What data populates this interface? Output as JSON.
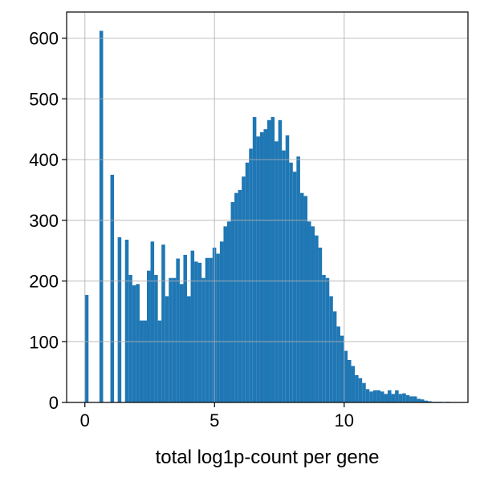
{
  "chart_data": {
    "type": "histogram",
    "xlabel": "total log1p-count per gene",
    "color": "#1f77b4",
    "grid": true,
    "bins": [
      0,
      0.1407,
      0.2814,
      0.4221,
      0.5628,
      0.7035,
      0.8442,
      0.9849,
      1.1256,
      1.2663,
      1.407,
      1.5477,
      1.6884,
      1.8291,
      1.9698,
      2.1105,
      2.2512,
      2.3919,
      2.5326,
      2.6733,
      2.814,
      2.9547,
      3.0954,
      3.2361,
      3.3768,
      3.5175,
      3.6582,
      3.7989,
      3.9396,
      4.0803,
      4.221,
      4.3617,
      4.5024,
      4.6431,
      4.7838,
      4.9245,
      5.0652,
      5.2059,
      5.3466,
      5.4873,
      5.628,
      5.7687,
      5.9094,
      6.0501,
      6.1908,
      6.3315,
      6.4722,
      6.6129,
      6.7536,
      6.8943,
      7.035,
      7.1757,
      7.3164,
      7.4571,
      7.5978,
      7.7385,
      7.8792,
      8.0199,
      8.1606,
      8.3013,
      8.442,
      8.5827,
      8.7234,
      8.8641,
      9.0048,
      9.1455,
      9.2862,
      9.4269,
      9.5676,
      9.7083,
      9.849,
      9.9897,
      10.1304,
      10.2711,
      10.4118,
      10.5525,
      10.6932,
      10.8339,
      10.9746,
      11.1153,
      11.256,
      11.3967,
      11.5374,
      11.6781,
      11.8188,
      11.9595,
      12.1002,
      12.2409,
      12.3816,
      12.5223,
      12.663,
      12.8037,
      12.9444,
      13.0851,
      13.2258,
      13.3665,
      13.5072,
      13.6479,
      13.7886,
      13.9293,
      14.07
    ],
    "counts": [
      177,
      0,
      0,
      0,
      612,
      0,
      0,
      375,
      0,
      272,
      0,
      268,
      210,
      193,
      195,
      135,
      135,
      217,
      265,
      210,
      135,
      260,
      175,
      205,
      205,
      237,
      195,
      243,
      175,
      250,
      232,
      230,
      205,
      238,
      238,
      255,
      245,
      265,
      290,
      298,
      330,
      345,
      350,
      372,
      395,
      418,
      470,
      438,
      445,
      450,
      465,
      470,
      430,
      465,
      415,
      440,
      395,
      380,
      405,
      345,
      340,
      298,
      290,
      275,
      255,
      210,
      205,
      175,
      150,
      125,
      110,
      85,
      70,
      60,
      45,
      40,
      32,
      22,
      18,
      20,
      20,
      18,
      14,
      20,
      14,
      20,
      14,
      15,
      12,
      10,
      10,
      6,
      5,
      3,
      2,
      1,
      1,
      1,
      0,
      1
    ],
    "xlim": [
      -0.7035,
      14.7735
    ],
    "ylim": [
      0,
      643
    ],
    "xticks": [
      0,
      5,
      10
    ],
    "yticks": [
      0,
      100,
      200,
      300,
      400,
      500,
      600
    ]
  }
}
